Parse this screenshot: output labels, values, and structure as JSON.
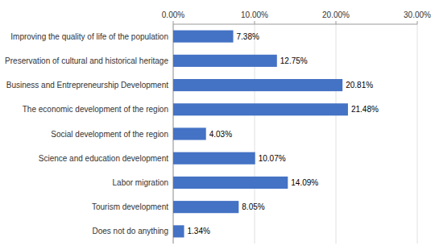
{
  "chart_data": {
    "type": "bar",
    "orientation": "horizontal",
    "categories": [
      "Does not do anything",
      "Tourism development",
      "Labor migration",
      "Science and education development",
      "Social development of the region",
      "The economic development of the region",
      "Business and Entrepreneurship Development",
      "Preservation of cultural and historical heritage",
      "Improving the quality of life of the population"
    ],
    "values": [
      1.34,
      8.05,
      14.09,
      10.07,
      4.03,
      21.48,
      20.81,
      12.75,
      7.38
    ],
    "value_labels": [
      "1.34%",
      "8.05%",
      "14.09%",
      "10.07%",
      "4.03%",
      "21.48%",
      "20.81%",
      "12.75%",
      "7.38%"
    ],
    "data_labels": true,
    "color": "#4472C4",
    "xlim": [
      0,
      30
    ],
    "xticks": [
      {
        "value": 0,
        "label": "0.00%"
      },
      {
        "value": 10,
        "label": "10.00%"
      },
      {
        "value": 20,
        "label": "20.00%"
      },
      {
        "value": 30,
        "label": "30.00%"
      }
    ],
    "grid": true
  }
}
